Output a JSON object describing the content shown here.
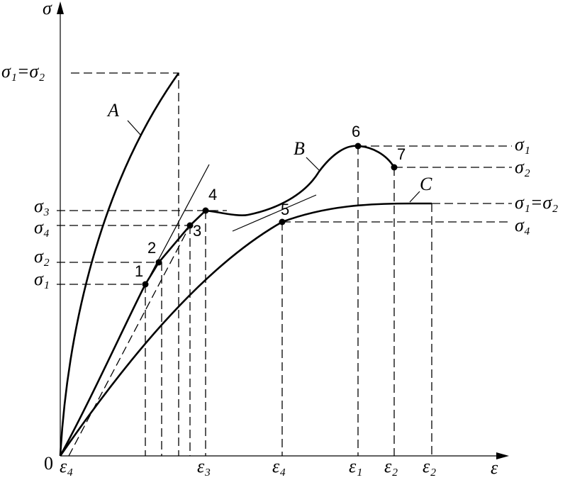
{
  "axis_labels": {
    "y": "σ",
    "x": "ε",
    "origin": "0"
  },
  "curve_labels": [
    "A",
    "B",
    "C"
  ],
  "points": [
    "1",
    "2",
    "3",
    "4",
    "5",
    "6",
    "7"
  ],
  "left_labels": [
    "σ₁=σ₂",
    "σ₃",
    "σ₄",
    "σ₂",
    "σ₁"
  ],
  "right_labels": [
    "σ₁",
    "σ₂",
    "σ₁=σ₂",
    "σ₄"
  ],
  "x_labels": [
    "ε₄",
    "ε₃",
    "ε₄",
    "ε₁",
    "ε₂",
    "ε₂"
  ]
}
